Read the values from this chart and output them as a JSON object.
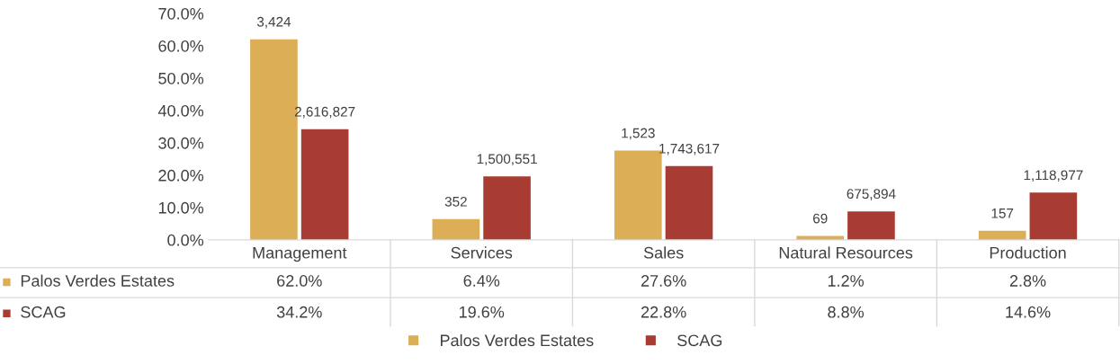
{
  "chart_data": {
    "type": "bar",
    "categories": [
      "Management",
      "Services",
      "Sales",
      "Natural Resources",
      "Production"
    ],
    "series": [
      {
        "name": "Palos Verdes Estates",
        "color": "#dcae55",
        "values": [
          62.0,
          6.4,
          27.6,
          1.2,
          2.8
        ],
        "value_labels": [
          "62.0%",
          "6.4%",
          "27.6%",
          "1.2%",
          "2.8%"
        ]
      },
      {
        "name": "SCAG",
        "color": "#a93c32",
        "values": [
          34.2,
          19.6,
          22.8,
          8.8,
          14.6
        ],
        "value_labels": [
          "34.2%",
          "19.6%",
          "22.8%",
          "8.8%",
          "14.6%"
        ]
      }
    ],
    "annotations": [
      {
        "text": "3,424",
        "x": "Management",
        "y": 62.0
      },
      {
        "text": "2,616,827",
        "x": "Management",
        "y": 34.2
      },
      {
        "text": "352",
        "x": "Services",
        "y": 6.4
      },
      {
        "text": "1,500,551",
        "x": "Services",
        "y": 19.6
      },
      {
        "text": "1,523",
        "x": "Sales",
        "y": 27.6
      },
      {
        "text": "1,743,617",
        "x": "Sales",
        "y": 22.8
      },
      {
        "text": "69",
        "x": "Natural Resources",
        "y": 1.2
      },
      {
        "text": "675,894",
        "x": "Natural Resources",
        "y": 8.8
      },
      {
        "text": "157",
        "x": "Production",
        "y": 2.8
      },
      {
        "text": "1,118,977",
        "x": "Production",
        "y": 14.6
      }
    ],
    "ylim": [
      0,
      70
    ],
    "yticks": [
      {
        "value": 0,
        "label": "0.0%"
      },
      {
        "value": 10,
        "label": "10.0%"
      },
      {
        "value": 20,
        "label": "20.0%"
      },
      {
        "value": 30,
        "label": "30.0%"
      },
      {
        "value": 40,
        "label": "40.0%"
      },
      {
        "value": 50,
        "label": "50.0%"
      },
      {
        "value": 60,
        "label": "60.0%"
      },
      {
        "value": 70,
        "label": "70.0%"
      }
    ],
    "grid": false,
    "legend": "bottom"
  }
}
